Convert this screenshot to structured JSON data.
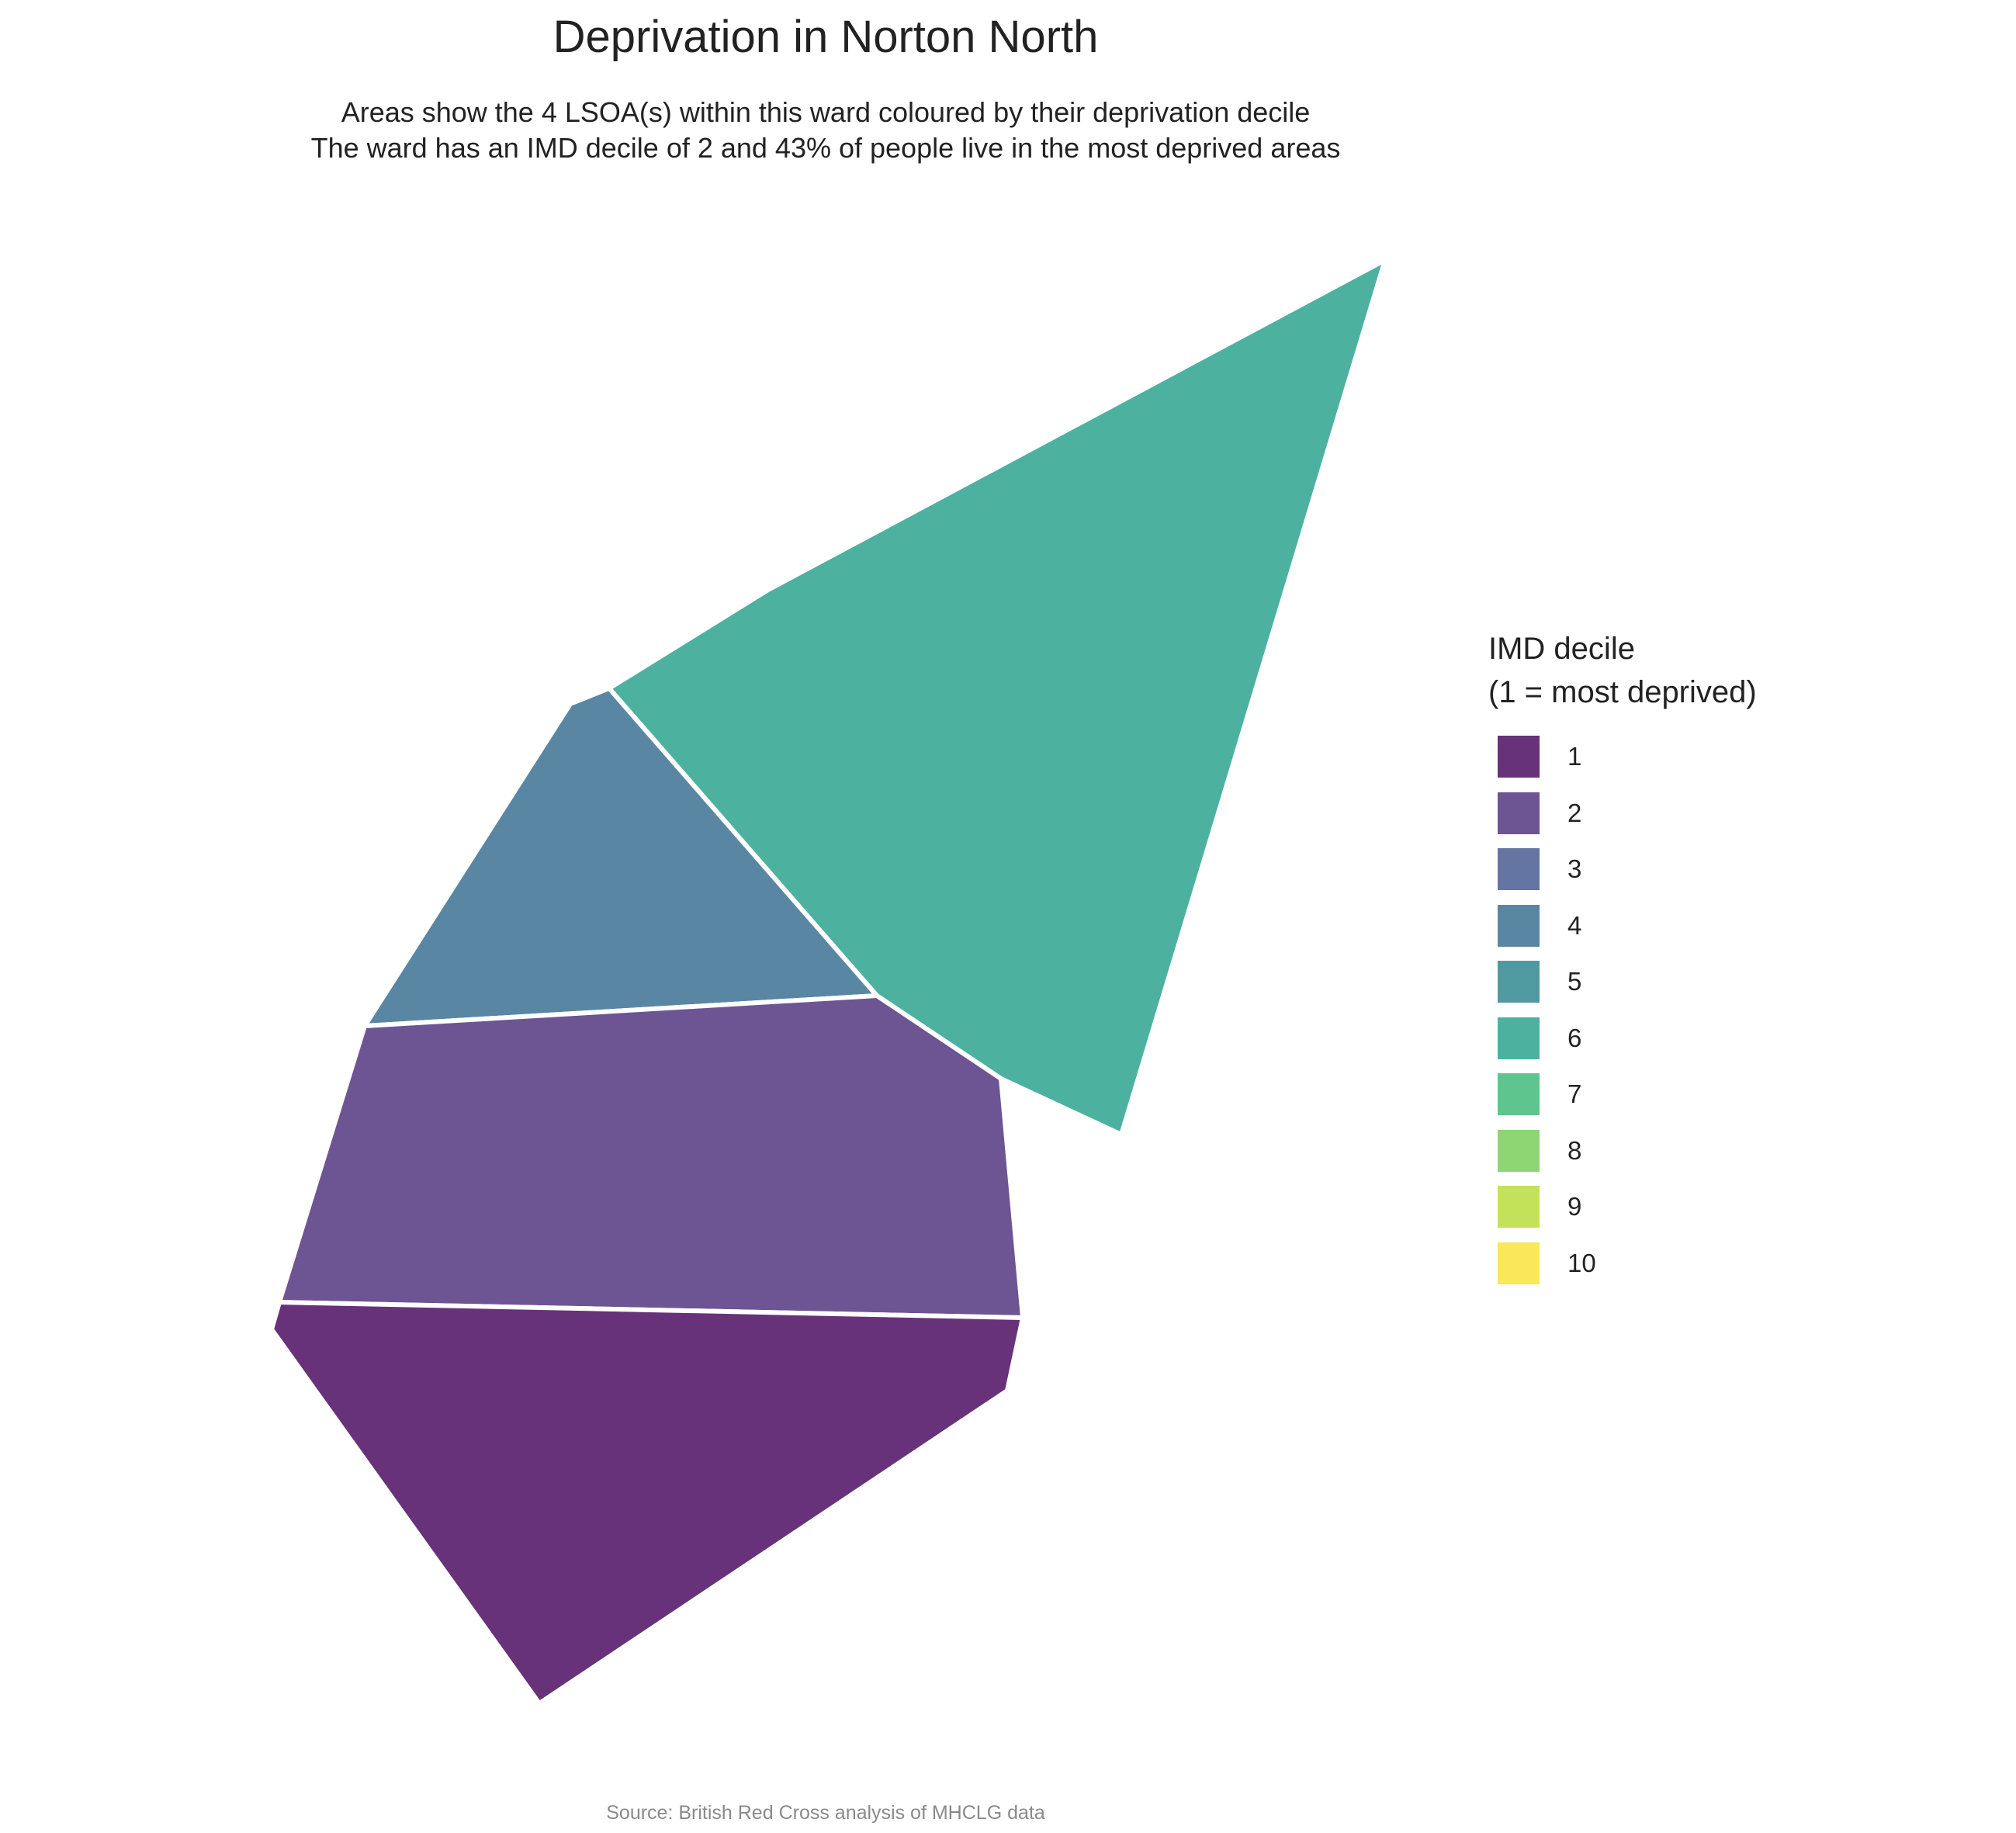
{
  "title": "Deprivation in Norton North",
  "subtitle_line1": "Areas show the 4 LSOA(s) within this ward coloured by their deprivation decile",
  "subtitle_line2": "The ward has an IMD decile of 2 and 43% of people live in the most deprived areas",
  "legend": {
    "title_line1": "IMD decile",
    "title_line2": "(1 = most deprived)",
    "items": [
      {
        "label": "1",
        "color": "#67327a"
      },
      {
        "label": "2",
        "color": "#6d5593"
      },
      {
        "label": "3",
        "color": "#6474a3"
      },
      {
        "label": "4",
        "color": "#5987a3"
      },
      {
        "label": "5",
        "color": "#4f9aa1"
      },
      {
        "label": "6",
        "color": "#4db1a0"
      },
      {
        "label": "7",
        "color": "#5fc58e"
      },
      {
        "label": "8",
        "color": "#8ed673"
      },
      {
        "label": "9",
        "color": "#c3e25a"
      },
      {
        "label": "10",
        "color": "#fae75a"
      }
    ]
  },
  "areas": [
    {
      "decile": 6,
      "color": "#4db1a0"
    },
    {
      "decile": 4,
      "color": "#5987a3"
    },
    {
      "decile": 2,
      "color": "#6d5593"
    },
    {
      "decile": 1,
      "color": "#67327a"
    }
  ],
  "caption": "Source: British Red Cross analysis of MHCLG data"
}
